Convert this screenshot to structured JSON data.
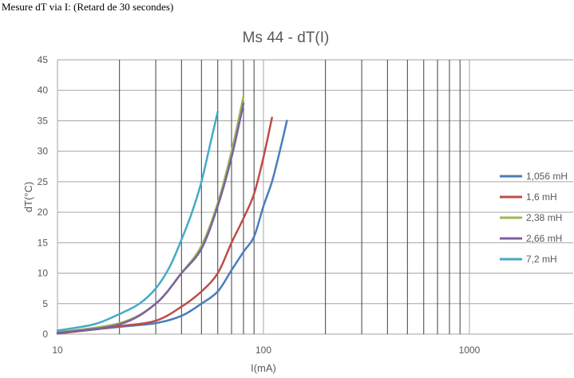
{
  "caption": "Mesure dT via I: (Retard de 30 secondes)",
  "chart_data": {
    "type": "line",
    "title": "Ms 44 - dT(I)",
    "xlabel": "I(mA)",
    "ylabel": "dT(°C)",
    "xscale": "log",
    "xlim": [
      10,
      1000
    ],
    "ylim": [
      0,
      45
    ],
    "xticks": [
      "10",
      "100",
      "1000"
    ],
    "yticks": [
      "0",
      "5",
      "10",
      "15",
      "20",
      "25",
      "30",
      "35",
      "40",
      "45"
    ],
    "grid": true,
    "legend": "right",
    "series": [
      {
        "name": "1,056 mH",
        "color": "#4a7ebb",
        "x": [
          10,
          20,
          30,
          40,
          50,
          60,
          70,
          80,
          90,
          100,
          110,
          120,
          130
        ],
        "y": [
          0.1,
          1.2,
          1.8,
          3,
          5,
          7,
          10.5,
          13.5,
          16,
          21,
          25,
          30,
          35
        ]
      },
      {
        "name": "1,6 mH",
        "color": "#be4b48",
        "x": [
          10,
          20,
          30,
          40,
          50,
          60,
          70,
          80,
          90,
          100,
          110
        ],
        "y": [
          0.1,
          1.3,
          2.2,
          4.5,
          7,
          10,
          15,
          19,
          23,
          29,
          35.5
        ]
      },
      {
        "name": "2,38 mH",
        "color": "#98b954",
        "x": [
          10,
          20,
          30,
          40,
          50,
          60,
          70,
          80
        ],
        "y": [
          0.3,
          1.8,
          5,
          10,
          14.5,
          21.5,
          30,
          39
        ]
      },
      {
        "name": "2,66 mH",
        "color": "#7d60a0",
        "x": [
          10,
          20,
          30,
          40,
          50,
          60,
          70,
          80
        ],
        "y": [
          0.2,
          1.6,
          5,
          10,
          14,
          21,
          29,
          37.8
        ]
      },
      {
        "name": "7,2 mH",
        "color": "#46aac5",
        "x": [
          10,
          15,
          20,
          25,
          30,
          35,
          40,
          45,
          50,
          55,
          60
        ],
        "y": [
          0.6,
          1.6,
          3.3,
          5,
          7.5,
          11,
          15.5,
          20,
          25,
          31,
          36.5
        ]
      }
    ]
  }
}
